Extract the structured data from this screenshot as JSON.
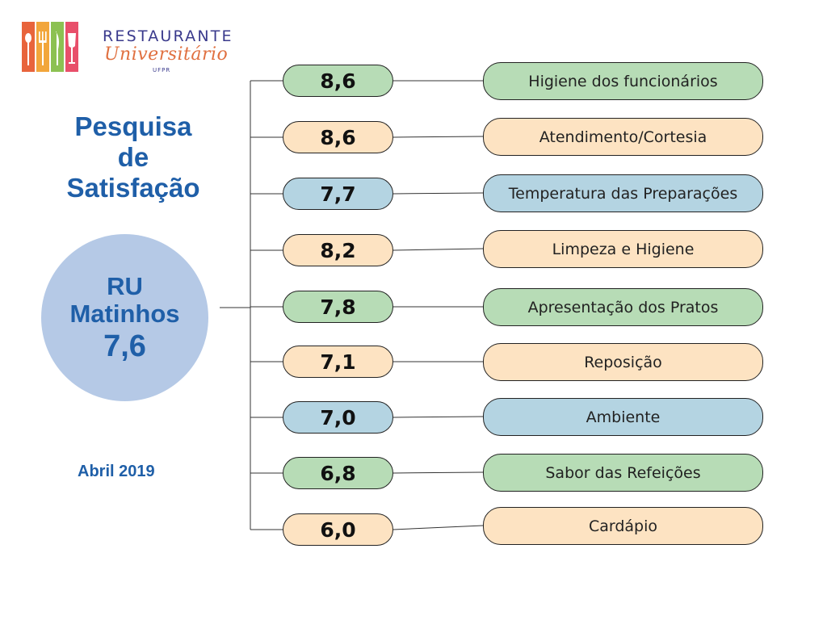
{
  "logo": {
    "main": "RESTAURANTE",
    "script": "Universitário",
    "sub": "UFPR",
    "colors": [
      "#e8643c",
      "#f2a63b",
      "#8cc152",
      "#e84f6a"
    ]
  },
  "title": {
    "line1": "Pesquisa",
    "line2": "de",
    "line3": "Satisfação"
  },
  "center": {
    "line1": "RU",
    "line2": "Matinhos",
    "score": "7,6",
    "color": "#b5c9e6"
  },
  "date": "Abril 2019",
  "palette": {
    "green": "#b7dcb6",
    "peach": "#fde3c2",
    "blue": "#b4d4e2"
  },
  "items": [
    {
      "score": "8,6",
      "label": "Higiene dos funcionários",
      "color": "#b7dcb6"
    },
    {
      "score": "8,6",
      "label": "Atendimento/Cortesia",
      "color": "#fde3c2"
    },
    {
      "score": "7,7",
      "label": "Temperatura das Preparações",
      "color": "#b4d4e2"
    },
    {
      "score": "8,2",
      "label": "Limpeza e Higiene",
      "color": "#fde3c2"
    },
    {
      "score": "7,8",
      "label": "Apresentação dos Pratos",
      "color": "#b7dcb6"
    },
    {
      "score": "7,1",
      "label": "Reposição",
      "color": "#fde3c2"
    },
    {
      "score": "7,0",
      "label": "Ambiente",
      "color": "#b4d4e2"
    },
    {
      "score": "6,8",
      "label": "Sabor das Refeições",
      "color": "#b7dcb6"
    },
    {
      "score": "6,0",
      "label": "Cardápio",
      "color": "#fde3c2"
    }
  ]
}
